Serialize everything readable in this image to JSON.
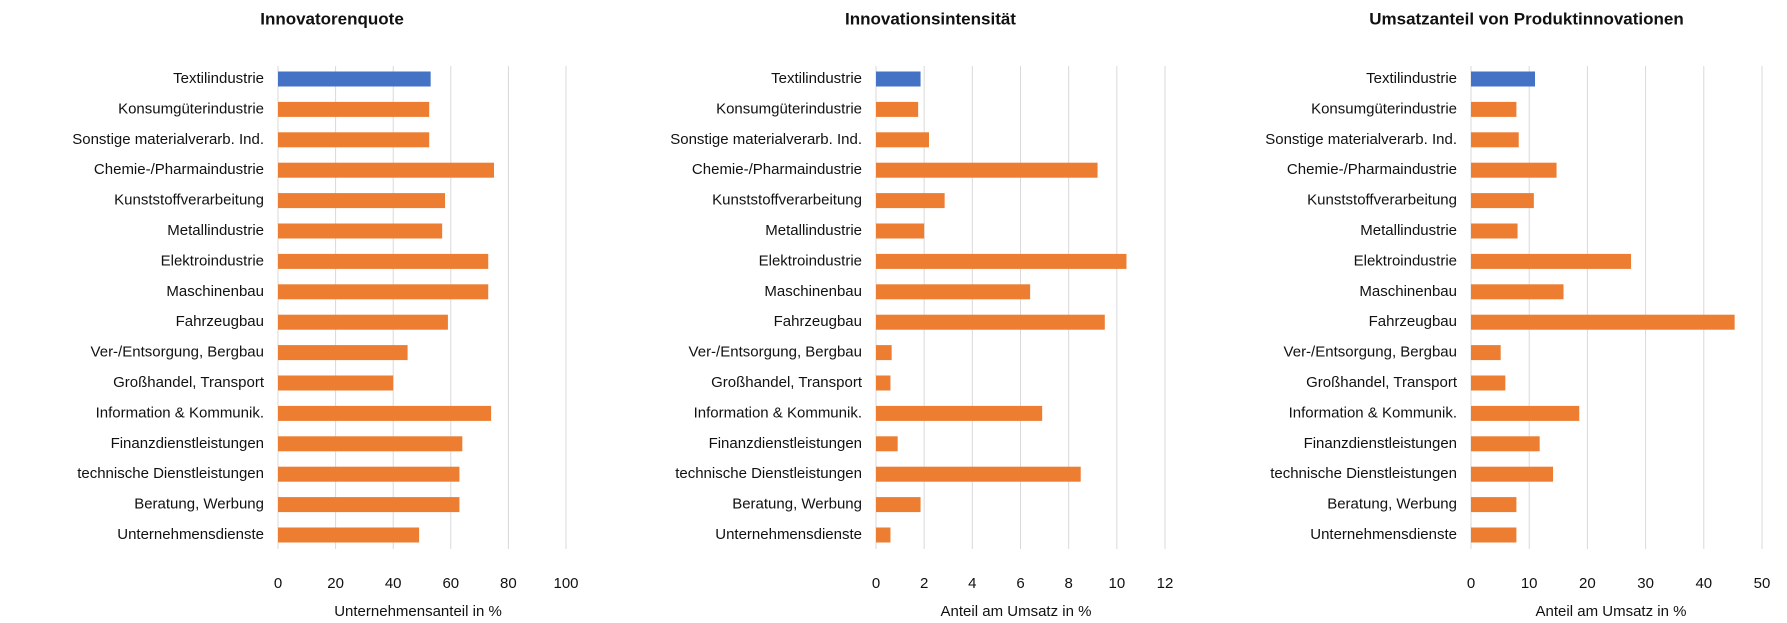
{
  "chart_data": [
    {
      "type": "bar",
      "orientation": "horizontal",
      "title": "Innovatorenquote",
      "xlabel": "Unternehmensanteil in %",
      "categories": [
        "Textilindustrie",
        "Konsumgüterindustrie",
        "Sonstige materialverarb. Ind.",
        "Chemie-/Pharmaindustrie",
        "Kunststoffverarbeitung",
        "Metallindustrie",
        "Elektroindustrie",
        "Maschinenbau",
        "Fahrzeugbau",
        "Ver-/Entsorgung, Bergbau",
        "Großhandel, Transport",
        "Information & Kommunik.",
        "Finanzdienstleistungen",
        "technische Dienstleistungen",
        "Beratung, Werbung",
        "Unternehmensdienste"
      ],
      "values": [
        53,
        52.5,
        52.5,
        75,
        58,
        57,
        73,
        73,
        59,
        45,
        40,
        74,
        64,
        63,
        63,
        49
      ],
      "colors": [
        "#4472c4",
        "#ed7d31",
        "#ed7d31",
        "#ed7d31",
        "#ed7d31",
        "#ed7d31",
        "#ed7d31",
        "#ed7d31",
        "#ed7d31",
        "#ed7d31",
        "#ed7d31",
        "#ed7d31",
        "#ed7d31",
        "#ed7d31",
        "#ed7d31",
        "#ed7d31"
      ],
      "xlim": [
        0,
        100
      ],
      "xticks": [
        0,
        20,
        40,
        60,
        80,
        100
      ],
      "grid": true
    },
    {
      "type": "bar",
      "orientation": "horizontal",
      "title": "Innovationsintensität",
      "xlabel": "Anteil am Umsatz in %",
      "categories": [
        "Textilindustrie",
        "Konsumgüterindustrie",
        "Sonstige materialverarb. Ind.",
        "Chemie-/Pharmaindustrie",
        "Kunststoffverarbeitung",
        "Metallindustrie",
        "Elektroindustrie",
        "Maschinenbau",
        "Fahrzeugbau",
        "Ver-/Entsorgung, Bergbau",
        "Großhandel, Transport",
        "Information & Kommunik.",
        "Finanzdienstleistungen",
        "technische Dienstleistungen",
        "Beratung, Werbung",
        "Unternehmensdienste"
      ],
      "values": [
        1.85,
        1.75,
        2.2,
        9.2,
        2.85,
        2.0,
        10.4,
        6.4,
        9.5,
        0.65,
        0.6,
        6.9,
        0.9,
        8.5,
        1.85,
        0.6
      ],
      "colors": [
        "#4472c4",
        "#ed7d31",
        "#ed7d31",
        "#ed7d31",
        "#ed7d31",
        "#ed7d31",
        "#ed7d31",
        "#ed7d31",
        "#ed7d31",
        "#ed7d31",
        "#ed7d31",
        "#ed7d31",
        "#ed7d31",
        "#ed7d31",
        "#ed7d31",
        "#ed7d31"
      ],
      "xlim": [
        0,
        12
      ],
      "xticks": [
        0,
        2,
        4,
        6,
        8,
        10,
        12
      ],
      "grid": true
    },
    {
      "type": "bar",
      "orientation": "horizontal",
      "title": "Umsatzanteil von Produktinnovationen",
      "xlabel": "Anteil am Umsatz in %",
      "categories": [
        "Textilindustrie",
        "Konsumgüterindustrie",
        "Sonstige materialverarb. Ind.",
        "Chemie-/Pharmaindustrie",
        "Kunststoffverarbeitung",
        "Metallindustrie",
        "Elektroindustrie",
        "Maschinenbau",
        "Fahrzeugbau",
        "Ver-/Entsorgung, Bergbau",
        "Großhandel, Transport",
        "Information & Kommunik.",
        "Finanzdienstleistungen",
        "technische Dienstleistungen",
        "Beratung, Werbung",
        "Unternehmensdienste"
      ],
      "values": [
        11,
        7.8,
        8.2,
        14.7,
        10.8,
        8,
        27.5,
        15.9,
        45.3,
        5.1,
        5.9,
        18.6,
        11.8,
        14.1,
        7.8,
        7.8
      ],
      "colors": [
        "#4472c4",
        "#ed7d31",
        "#ed7d31",
        "#ed7d31",
        "#ed7d31",
        "#ed7d31",
        "#ed7d31",
        "#ed7d31",
        "#ed7d31",
        "#ed7d31",
        "#ed7d31",
        "#ed7d31",
        "#ed7d31",
        "#ed7d31",
        "#ed7d31",
        "#ed7d31"
      ],
      "xlim": [
        0,
        50
      ],
      "xticks": [
        0,
        10,
        20,
        30,
        40,
        50
      ],
      "grid": true
    }
  ]
}
